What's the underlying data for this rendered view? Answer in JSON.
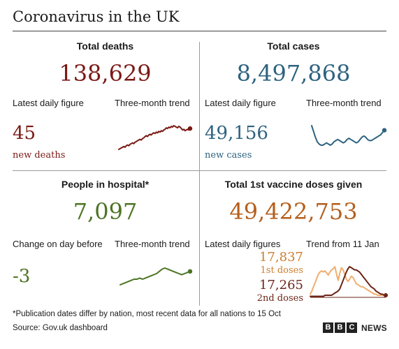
{
  "title": "Coronavirus in the UK",
  "colors": {
    "deaths": "#7a1a15",
    "cases": "#2e6380",
    "hospital": "#4c7424",
    "vaccine": "#b55f1d",
    "dose1": "#d07d2c",
    "dose2": "#6b2418",
    "dose1_light": "#efae6e"
  },
  "deaths": {
    "heading": "Total deaths",
    "total": "138,629",
    "latest_label": "Latest daily figure",
    "trend_label": "Three-month trend",
    "latest_value": "45",
    "latest_sub": "new deaths"
  },
  "cases": {
    "heading": "Total cases",
    "total": "8,497,868",
    "latest_label": "Latest daily figure",
    "trend_label": "Three-month trend",
    "latest_value": "49,156",
    "latest_sub": "new cases"
  },
  "hospital": {
    "heading": "People in hospital*",
    "total": "7,097",
    "latest_label": "Change on day before",
    "trend_label": "Three-month trend",
    "latest_value": "-3"
  },
  "vaccine": {
    "heading": "Total 1st vaccine doses given",
    "total": "49,422,753",
    "latest_label": "Latest daily figures",
    "trend_label": "Trend from 11 Jan",
    "dose1_value": "17,837",
    "dose1_sub": "1st doses",
    "dose2_value": "17,265",
    "dose2_sub": "2nd doses"
  },
  "footnote": "*Publication dates differ by nation, most recent data for all nations to 15 Oct",
  "source": "Source: Gov.uk dashboard",
  "brand": {
    "letters": [
      "B",
      "B",
      "C"
    ],
    "news": "NEWS"
  },
  "chart_data": [
    {
      "type": "line",
      "name": "deaths-trend",
      "values": [
        8,
        9,
        10,
        11,
        12,
        11,
        13,
        14,
        13,
        15,
        16,
        17,
        16,
        18,
        19,
        20,
        21,
        22,
        21,
        23,
        24,
        26,
        27,
        26,
        28,
        29,
        28,
        30,
        31,
        30,
        32,
        31,
        33,
        32,
        34,
        33,
        35,
        36,
        38,
        37,
        39,
        38,
        40,
        39,
        41,
        40,
        39,
        38,
        40,
        39,
        37,
        35,
        36,
        34,
        35,
        36,
        35,
        37
      ],
      "highlight_last": true
    },
    {
      "type": "line",
      "name": "cases-trend",
      "values": [
        32,
        27,
        22,
        18,
        16,
        15,
        15,
        16,
        17,
        16,
        15,
        16,
        18,
        19,
        20,
        19,
        18,
        17,
        18,
        20,
        21,
        20,
        19,
        18,
        17,
        18,
        20,
        22,
        23,
        22,
        20,
        19,
        19,
        20,
        21,
        22,
        23,
        24,
        26,
        28
      ],
      "highlight_last": true
    },
    {
      "type": "line",
      "name": "hospital-trend",
      "values": [
        10,
        11,
        12,
        13,
        14,
        15,
        15,
        16,
        15,
        16,
        17,
        18,
        19,
        20,
        22,
        24,
        25,
        24,
        23,
        22,
        21,
        20,
        19,
        20,
        21,
        22
      ],
      "highlight_last": true
    },
    {
      "type": "line",
      "name": "vaccine-trend",
      "series": [
        {
          "name": "1st doses",
          "values": [
            3,
            6,
            10,
            14,
            18,
            22,
            24,
            25,
            24,
            25,
            23,
            21,
            24,
            26,
            27,
            29,
            22,
            16,
            23,
            28,
            26,
            22,
            17,
            15,
            17,
            20,
            19,
            16,
            13,
            12,
            11,
            10,
            10,
            9,
            8,
            7,
            6,
            5,
            4,
            3,
            3,
            2,
            2,
            2,
            2,
            2,
            2
          ]
        },
        {
          "name": "2nd doses",
          "values": [
            1,
            1,
            1,
            1,
            1,
            1,
            1,
            1,
            1,
            2,
            2,
            2,
            2,
            2,
            3,
            4,
            5,
            6,
            8,
            12,
            16,
            20,
            24,
            27,
            29,
            28,
            27,
            26,
            26,
            25,
            24,
            22,
            20,
            18,
            16,
            14,
            12,
            10,
            9,
            8,
            6,
            5,
            4,
            3,
            3,
            2,
            2
          ]
        }
      ]
    }
  ]
}
